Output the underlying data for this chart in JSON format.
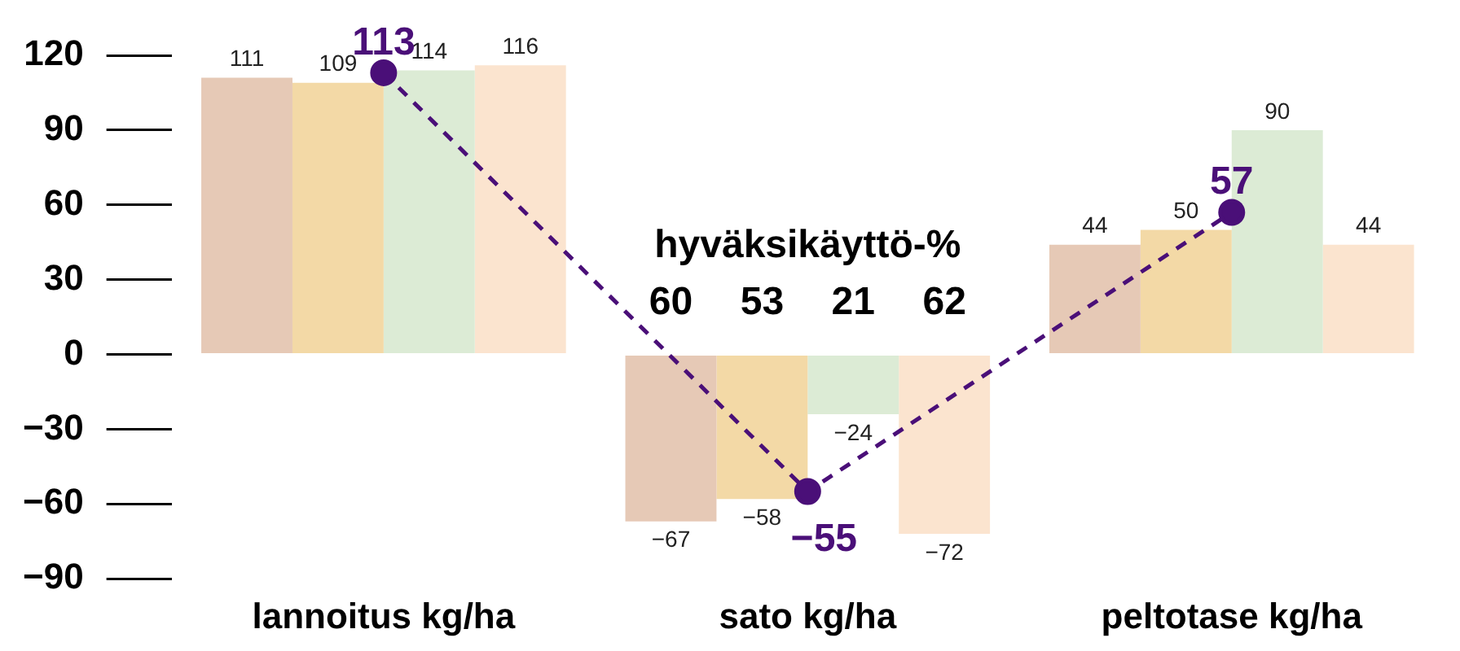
{
  "chart_data": {
    "type": "bar",
    "categories": [
      "lannoitus kg/ha",
      "sato kg/ha",
      "peltotase kg/ha"
    ],
    "series": [
      {
        "color": "#e6c9b6",
        "values": [
          111,
          -67,
          44
        ],
        "value_labels": [
          "111",
          "−67",
          "44"
        ]
      },
      {
        "color": "#f3d9a6",
        "values": [
          109,
          -58,
          50
        ],
        "value_labels": [
          "109",
          "−58",
          "50"
        ]
      },
      {
        "color": "#dcebd5",
        "values": [
          114,
          -24,
          90
        ],
        "value_labels": [
          "114",
          "−24",
          "90"
        ]
      },
      {
        "color": "#fbe4cf",
        "values": [
          116,
          -72,
          44
        ],
        "value_labels": [
          "116",
          "−72",
          "44"
        ]
      },
      {
        "type": "line",
        "color": "#4a0f78",
        "values": [
          113,
          -55,
          57
        ],
        "value_labels": [
          "113",
          "−55",
          "57"
        ],
        "marker": "circle",
        "line_style": "dashed"
      }
    ],
    "ylim": [
      -90,
      120
    ],
    "yticks": [
      {
        "value": -90,
        "label": "−90"
      },
      {
        "value": -60,
        "label": "−60"
      },
      {
        "value": -30,
        "label": "−30"
      },
      0,
      30,
      60,
      90,
      120
    ],
    "grid": false,
    "legend": false,
    "annotations": [
      "hyväksikäyttö-%",
      "60",
      "53",
      "21",
      "62"
    ]
  }
}
